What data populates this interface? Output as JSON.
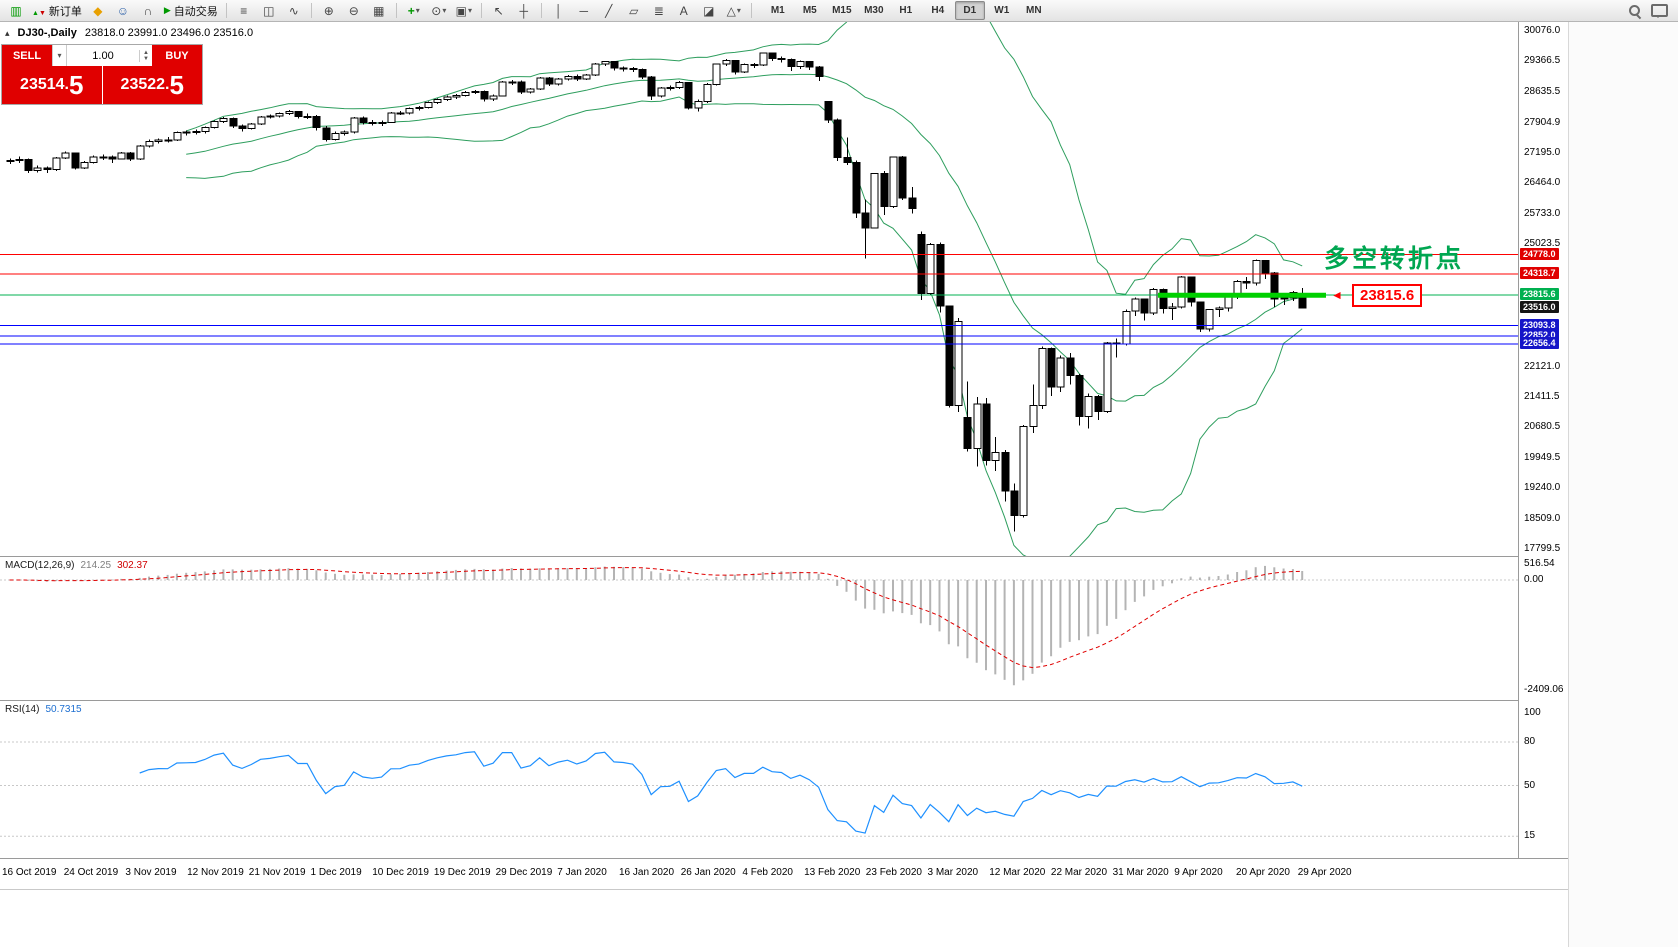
{
  "toolbar": {
    "new_order_label": "新订单",
    "autotrade_label": "自动交易",
    "timeframes": [
      "M1",
      "M5",
      "M15",
      "M30",
      "H1",
      "H4",
      "D1",
      "W1",
      "MN"
    ],
    "active_timeframe": "D1",
    "icons": {
      "chart": "▥",
      "up": "▲",
      "down": "▼",
      "mql": "◆",
      "profile": "☺",
      "support": "∩",
      "play": "▶",
      "bars": "≡",
      "candles": "◫",
      "line_chart": "∿",
      "zoom_in": "⊕",
      "zoom_out": "⊖",
      "tile": "▦",
      "indicators": "+",
      "periods": "⊙",
      "templates": "▣",
      "caret": "▾",
      "cursor": "↖",
      "crosshair": "┼",
      "vline": "│",
      "hline": "─",
      "trendline": "╱",
      "channel": "▱",
      "fibonacci": "≣",
      "text": "A",
      "label": "◪",
      "shapes": "△",
      "collapse": "▴"
    }
  },
  "symbol_header": {
    "symbol_period": "DJ30-,Daily",
    "ohlc": "23818.0 23991.0 23496.0 23516.0"
  },
  "trade_panel": {
    "sell_label": "SELL",
    "buy_label": "BUY",
    "volume": "1.00",
    "sell_price_main": "23514.",
    "sell_price_big": "5",
    "buy_price_main": "23522.",
    "buy_price_big": "5"
  },
  "annotation": {
    "text": "多空转折点",
    "callout_value": "23815.6",
    "arrow": "◄"
  },
  "price_scale": {
    "labels": [
      "30076.0",
      "29366.5",
      "28635.5",
      "27904.9",
      "27195.0",
      "26464.0",
      "25733.0",
      "25023.5",
      "22121.0",
      "21411.5",
      "20680.5",
      "19949.5",
      "19240.0",
      "18509.0",
      "17799.5"
    ],
    "tags": [
      {
        "value": "24778.0",
        "color": "#e00000"
      },
      {
        "value": "24318.7",
        "color": "#e00000"
      },
      {
        "value": "23815.6",
        "color": "#00b050"
      },
      {
        "value": "23516.0",
        "color": "#151515"
      },
      {
        "value": "23093.8",
        "color": "#1515c8"
      },
      {
        "value": "22852.0",
        "color": "#1515c8"
      },
      {
        "value": "22656.4",
        "color": "#1515c8"
      }
    ]
  },
  "macd_panel": {
    "header": "MACD(12,26,9)",
    "value_main": "214.25",
    "value_signal": "302.37",
    "scale": [
      "516.54",
      "0.00",
      "-2409.06"
    ]
  },
  "rsi_panel": {
    "header": "RSI(14)",
    "value": "50.7315",
    "scale": [
      "100",
      "80",
      "50",
      "15"
    ]
  },
  "dates": [
    "16 Oct 2019",
    "24 Oct 2019",
    "3 Nov 2019",
    "12 Nov 2019",
    "21 Nov 2019",
    "1 Dec 2019",
    "10 Dec 2019",
    "19 Dec 2019",
    "29 Dec 2019",
    "7 Jan 2020",
    "16 Jan 2020",
    "26 Jan 2020",
    "4 Feb 2020",
    "13 Feb 2020",
    "23 Feb 2020",
    "3 Mar 2020",
    "12 Mar 2020",
    "22 Mar 2020",
    "31 Mar 2020",
    "9 Apr 2020",
    "20 Apr 2020",
    "29 Apr 2020"
  ],
  "chart_data": {
    "type": "candlestick",
    "symbol": "DJ30-",
    "timeframe": "Daily",
    "current_ohlc": [
      23818.0,
      23991.0,
      23496.0,
      23516.0
    ],
    "candles": [
      [
        26980,
        27060,
        26920,
        27002
      ],
      [
        27002,
        27100,
        26945,
        27025
      ],
      [
        27025,
        27055,
        26715,
        26770
      ],
      [
        26770,
        26890,
        26720,
        26827
      ],
      [
        26827,
        26870,
        26715,
        26788
      ],
      [
        26788,
        27095,
        26760,
        27071
      ],
      [
        27071,
        27220,
        27040,
        27186
      ],
      [
        27186,
        27200,
        26790,
        26833
      ],
      [
        26833,
        26990,
        26810,
        26958
      ],
      [
        26958,
        27120,
        26930,
        27090
      ],
      [
        27090,
        27150,
        27020,
        27091
      ],
      [
        27091,
        27120,
        26945,
        27046
      ],
      [
        27046,
        27210,
        27025,
        27186
      ],
      [
        27186,
        27205,
        26990,
        27046
      ],
      [
        27046,
        27370,
        27020,
        27347
      ],
      [
        27347,
        27500,
        27320,
        27462
      ],
      [
        27462,
        27530,
        27410,
        27493
      ],
      [
        27493,
        27560,
        27430,
        27492
      ],
      [
        27492,
        27700,
        27470,
        27675
      ],
      [
        27675,
        27720,
        27600,
        27681
      ],
      [
        27681,
        27740,
        27620,
        27691
      ],
      [
        27691,
        27810,
        27650,
        27784
      ],
      [
        27784,
        27960,
        27760,
        27934
      ],
      [
        27934,
        28040,
        27900,
        28004
      ],
      [
        28004,
        28030,
        27780,
        27821
      ],
      [
        27821,
        27860,
        27700,
        27766
      ],
      [
        27766,
        27900,
        27740,
        27875
      ],
      [
        27875,
        28060,
        27850,
        28036
      ],
      [
        28036,
        28100,
        28000,
        28066
      ],
      [
        28066,
        28150,
        28030,
        28121
      ],
      [
        28121,
        28200,
        28090,
        28164
      ],
      [
        28164,
        28180,
        28000,
        28051
      ],
      [
        28051,
        28120,
        27990,
        28051
      ],
      [
        28051,
        28090,
        27720,
        27783
      ],
      [
        27783,
        27820,
        27460,
        27503
      ],
      [
        27503,
        27690,
        27480,
        27650
      ],
      [
        27650,
        27720,
        27600,
        27678
      ],
      [
        27678,
        28040,
        27650,
        28015
      ],
      [
        28015,
        28050,
        27860,
        27910
      ],
      [
        27910,
        27970,
        27840,
        27882
      ],
      [
        27882,
        27950,
        27820,
        27912
      ],
      [
        27912,
        28160,
        27890,
        28132
      ],
      [
        28132,
        28180,
        28080,
        28135
      ],
      [
        28135,
        28260,
        28100,
        28235
      ],
      [
        28235,
        28300,
        28190,
        28267
      ],
      [
        28267,
        28400,
        28240,
        28376
      ],
      [
        28376,
        28480,
        28340,
        28455
      ],
      [
        28455,
        28550,
        28420,
        28515
      ],
      [
        28515,
        28580,
        28470,
        28551
      ],
      [
        28551,
        28650,
        28520,
        28621
      ],
      [
        28621,
        28680,
        28580,
        28645
      ],
      [
        28645,
        28660,
        28410,
        28462
      ],
      [
        28462,
        28570,
        28420,
        28538
      ],
      [
        28538,
        28890,
        28520,
        28869
      ],
      [
        28869,
        28920,
        28800,
        28869
      ],
      [
        28869,
        28900,
        28580,
        28635
      ],
      [
        28635,
        28730,
        28590,
        28704
      ],
      [
        28704,
        28980,
        28680,
        28957
      ],
      [
        28957,
        28980,
        28770,
        28823
      ],
      [
        28823,
        28960,
        28790,
        28939
      ],
      [
        28939,
        29030,
        28900,
        29001
      ],
      [
        29001,
        29040,
        28890,
        28940
      ],
      [
        28940,
        29060,
        28910,
        29030
      ],
      [
        29030,
        29320,
        29010,
        29297
      ],
      [
        29297,
        29370,
        29250,
        29348
      ],
      [
        29348,
        29360,
        29140,
        29196
      ],
      [
        29196,
        29230,
        29120,
        29186
      ],
      [
        29186,
        29220,
        29100,
        29160
      ],
      [
        29160,
        29190,
        28940,
        28990
      ],
      [
        28990,
        29010,
        28440,
        28536
      ],
      [
        28536,
        28750,
        28500,
        28723
      ],
      [
        28723,
        28780,
        28660,
        28734
      ],
      [
        28734,
        28890,
        28700,
        28859
      ],
      [
        28859,
        28870,
        28210,
        28256
      ],
      [
        28256,
        28450,
        28170,
        28400
      ],
      [
        28400,
        28840,
        28370,
        28808
      ],
      [
        28808,
        29310,
        28780,
        29290
      ],
      [
        29290,
        29410,
        29250,
        29380
      ],
      [
        29380,
        29390,
        29050,
        29103
      ],
      [
        29103,
        29300,
        29080,
        29277
      ],
      [
        29277,
        29320,
        29200,
        29276
      ],
      [
        29276,
        29568,
        29250,
        29551
      ],
      [
        29551,
        29560,
        29370,
        29423
      ],
      [
        29423,
        29470,
        29330,
        29398
      ],
      [
        29398,
        29420,
        29130,
        29232
      ],
      [
        29232,
        29380,
        29180,
        29348
      ],
      [
        29348,
        29370,
        29150,
        29220
      ],
      [
        29220,
        29250,
        28890,
        28992
      ],
      [
        28400,
        28420,
        27890,
        27961
      ],
      [
        27961,
        28000,
        26990,
        27081
      ],
      [
        27081,
        27550,
        26900,
        26958
      ],
      [
        26958,
        27010,
        25650,
        25767
      ],
      [
        25767,
        26080,
        24680,
        25409
      ],
      [
        25409,
        26710,
        25390,
        26703
      ],
      [
        26703,
        26760,
        25710,
        25917
      ],
      [
        25917,
        27100,
        25880,
        27090
      ],
      [
        27090,
        27110,
        26070,
        26121
      ],
      [
        26121,
        26380,
        25750,
        25865
      ],
      [
        25250,
        25320,
        23700,
        23851
      ],
      [
        23851,
        25050,
        23830,
        25018
      ],
      [
        25018,
        25060,
        23400,
        23553
      ],
      [
        23553,
        23570,
        21150,
        21201
      ],
      [
        21201,
        23280,
        21050,
        23186
      ],
      [
        20917,
        21768,
        20116,
        20188
      ],
      [
        20188,
        21400,
        19750,
        21237
      ],
      [
        21237,
        21380,
        19780,
        19899
      ],
      [
        19899,
        20450,
        19650,
        20087
      ],
      [
        20087,
        20150,
        18920,
        19174
      ],
      [
        19174,
        19350,
        18210,
        18592
      ],
      [
        18592,
        20740,
        18550,
        20705
      ],
      [
        20705,
        21700,
        20550,
        21200
      ],
      [
        21200,
        22600,
        21120,
        22552
      ],
      [
        22552,
        22580,
        21430,
        21637
      ],
      [
        21637,
        22380,
        21520,
        22327
      ],
      [
        22327,
        22450,
        21700,
        21917
      ],
      [
        21917,
        21950,
        20730,
        20944
      ],
      [
        20944,
        21480,
        20650,
        21413
      ],
      [
        21413,
        21450,
        20860,
        21053
      ],
      [
        21053,
        22710,
        21020,
        22680
      ],
      [
        22680,
        22790,
        22340,
        22654
      ],
      [
        22654,
        23470,
        22620,
        23434
      ],
      [
        23434,
        23760,
        23320,
        23719
      ],
      [
        23719,
        23730,
        23220,
        23391
      ],
      [
        23391,
        23980,
        23340,
        23950
      ],
      [
        23950,
        23970,
        23380,
        23504
      ],
      [
        23504,
        23630,
        23230,
        23537
      ],
      [
        23537,
        24270,
        23500,
        24242
      ],
      [
        24242,
        24250,
        23550,
        23650
      ],
      [
        23650,
        23670,
        22940,
        23018
      ],
      [
        23018,
        23490,
        22950,
        23476
      ],
      [
        23476,
        23550,
        23300,
        23515
      ],
      [
        23515,
        23810,
        23430,
        23775
      ],
      [
        23775,
        24180,
        23720,
        24134
      ],
      [
        24134,
        24250,
        23960,
        24102
      ],
      [
        24102,
        24660,
        24050,
        24634
      ],
      [
        24634,
        24640,
        24200,
        24346
      ],
      [
        24346,
        24360,
        23540,
        23724
      ],
      [
        23724,
        23800,
        23580,
        23749
      ],
      [
        23749,
        23910,
        23680,
        23883
      ],
      [
        23818,
        23991,
        23496,
        23516
      ]
    ],
    "hlines": [
      {
        "price": 24778.0,
        "color": "#ff0000"
      },
      {
        "price": 24318.7,
        "color": "#ff0000"
      },
      {
        "price": 23815.6,
        "color": "#00b050"
      },
      {
        "price": 23093.8,
        "color": "#0000ff"
      },
      {
        "price": 22852.0,
        "color": "#0000ff"
      },
      {
        "price": 22656.4,
        "color": "#0000ff"
      }
    ],
    "thick_segment": {
      "price": 23815.6,
      "color": "#00d000"
    },
    "indicators": {
      "bollinger": {
        "period": 20,
        "deviation": 2,
        "color": "#2e9e5e"
      },
      "macd": {
        "fast": 12,
        "slow": 26,
        "signal": 9,
        "hist_color": "#b4b4b4",
        "signal_color": "#e00000"
      },
      "rsi": {
        "period": 14,
        "color": "#1e90ff",
        "levels": [
          80,
          50,
          15
        ]
      }
    },
    "candle_colors": {
      "bull": "#ffffff",
      "bear": "#000000",
      "outline": "#000000"
    }
  }
}
